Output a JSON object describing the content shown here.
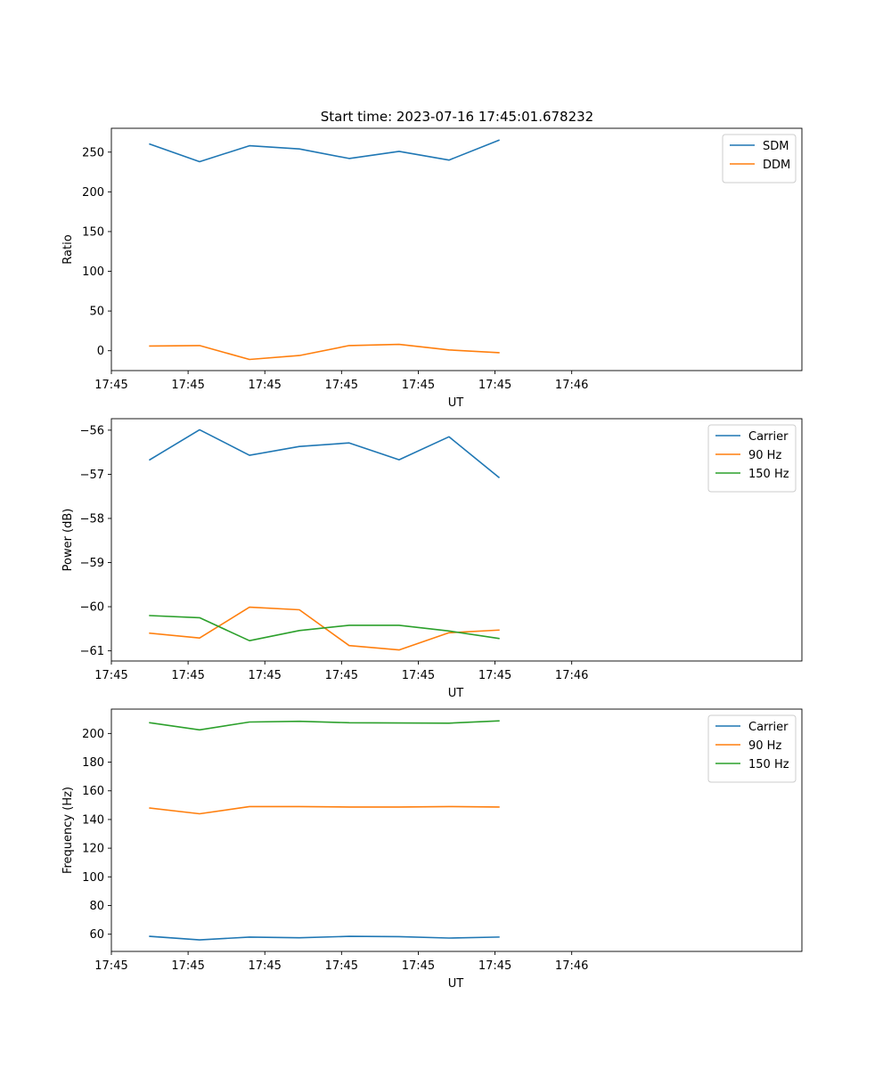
{
  "chart_data": [
    {
      "type": "line",
      "title": "Start time: 2023-07-16 17:45:01.678232",
      "xlabel": "UT",
      "ylabel": "Ratio",
      "xlim": [
        0,
        9
      ],
      "ylim": [
        -25,
        280
      ],
      "xticks": [
        0,
        1,
        2,
        3,
        4,
        5,
        6
      ],
      "xtick_labels": [
        "17:45",
        "17:45",
        "17:45",
        "17:45",
        "17:45",
        "17:45",
        "17:46"
      ],
      "yticks": [
        0,
        50,
        100,
        150,
        200,
        250
      ],
      "ytick_labels": [
        "0",
        "50",
        "100",
        "150",
        "200",
        "250"
      ],
      "grid": false,
      "legend_position": "top-right",
      "x": [
        0.5,
        1.15,
        1.8,
        2.45,
        3.1,
        3.75,
        4.4,
        5.05
      ],
      "series": [
        {
          "name": "SDM",
          "color": "#1f77b4",
          "values": [
            260,
            238,
            258,
            254,
            242,
            251,
            240,
            265
          ]
        },
        {
          "name": "DDM",
          "color": "#ff7f0e",
          "values": [
            6,
            6.5,
            -11,
            -6,
            6.5,
            8,
            1,
            -2.5
          ]
        }
      ]
    },
    {
      "type": "line",
      "title": "",
      "xlabel": "UT",
      "ylabel": "Power (dB)",
      "xlim": [
        0,
        9
      ],
      "ylim": [
        -61.23,
        -55.74
      ],
      "xticks": [
        0,
        1,
        2,
        3,
        4,
        5,
        6
      ],
      "xtick_labels": [
        "17:45",
        "17:45",
        "17:45",
        "17:45",
        "17:45",
        "17:45",
        "17:46"
      ],
      "yticks": [
        -61,
        -60,
        -59,
        -58,
        -57,
        -56
      ],
      "ytick_labels": [
        "−61",
        "−60",
        "−59",
        "−58",
        "−57",
        "−56"
      ],
      "grid": false,
      "legend_position": "top-right",
      "x": [
        0.5,
        1.15,
        1.8,
        2.45,
        3.1,
        3.75,
        4.4,
        5.05
      ],
      "series": [
        {
          "name": "Carrier",
          "color": "#1f77b4",
          "values": [
            -56.67,
            -55.99,
            -56.57,
            -56.37,
            -56.29,
            -56.67,
            -56.15,
            -57.07
          ]
        },
        {
          "name": "90 Hz",
          "color": "#ff7f0e",
          "values": [
            -60.6,
            -60.71,
            -60.01,
            -60.07,
            -60.88,
            -60.98,
            -60.59,
            -60.53
          ]
        },
        {
          "name": "150 Hz",
          "color": "#2ca02c",
          "values": [
            -60.2,
            -60.25,
            -60.77,
            -60.54,
            -60.42,
            -60.42,
            -60.55,
            -60.72
          ]
        }
      ]
    },
    {
      "type": "line",
      "title": "",
      "xlabel": "UT",
      "ylabel": "Frequency (Hz)",
      "xlim": [
        0,
        9
      ],
      "ylim": [
        48,
        217
      ],
      "xticks": [
        0,
        1,
        2,
        3,
        4,
        5,
        6
      ],
      "xtick_labels": [
        "17:45",
        "17:45",
        "17:45",
        "17:45",
        "17:45",
        "17:45",
        "17:46"
      ],
      "yticks": [
        60,
        80,
        100,
        120,
        140,
        160,
        180,
        200
      ],
      "ytick_labels": [
        "60",
        "80",
        "100",
        "120",
        "140",
        "160",
        "180",
        "200"
      ],
      "grid": false,
      "legend_position": "top-right",
      "x": [
        0.5,
        1.15,
        1.8,
        2.45,
        3.1,
        3.75,
        4.4,
        5.05
      ],
      "series": [
        {
          "name": "Carrier",
          "color": "#1f77b4",
          "values": [
            58.5,
            56,
            58,
            57.5,
            58.5,
            58.3,
            57.3,
            58
          ]
        },
        {
          "name": "90 Hz",
          "color": "#ff7f0e",
          "values": [
            148,
            144,
            149,
            149,
            148.7,
            148.7,
            149,
            148.7
          ]
        },
        {
          "name": "150 Hz",
          "color": "#2ca02c",
          "values": [
            207.5,
            202.5,
            208,
            208.5,
            207.5,
            207.3,
            207.2,
            208.8
          ]
        }
      ]
    }
  ]
}
